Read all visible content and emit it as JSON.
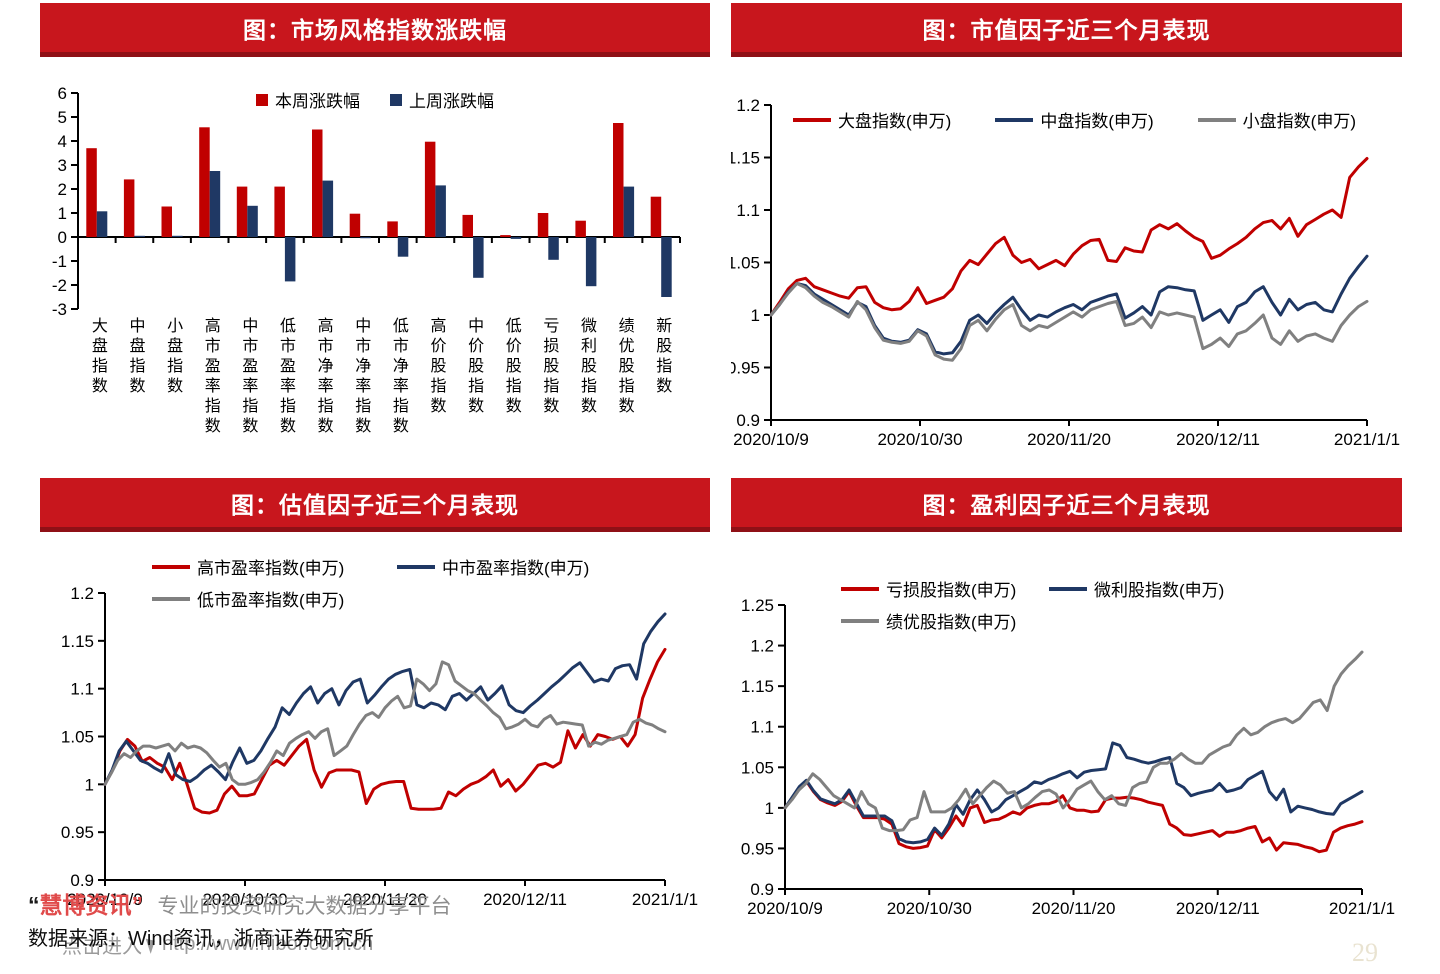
{
  "colors": {
    "banner_bg": "#c8161d",
    "banner_shadow": "#8f1016",
    "series_red": "#c00000",
    "series_navy": "#1f3864",
    "series_gray": "#808080",
    "watermark_red": "#e04a4a",
    "watermark_gray": "#9b9b9b",
    "page_number_color": "#e9e3d1"
  },
  "footer": {
    "watermark_open_quote": "“",
    "watermark_brand": "慧博资讯",
    "watermark_close_quote": "”",
    "watermark_slogan": "专业的投资研究大数据分享平台",
    "watermark_click": "点击进入",
    "watermark_url": "http://www.hibor.com.cn",
    "datasource": "数据来源：Wind资讯，浙商证券研究所",
    "page_number": "29"
  },
  "chart_data": [
    {
      "id": "market-style-change",
      "type": "bar",
      "title": "图：市场风格指数涨跌幅",
      "ylim": [
        -3,
        6
      ],
      "y_ticks": [
        "6",
        "5",
        "4",
        "3",
        "2",
        "1",
        "0",
        "-1",
        "-2",
        "-3"
      ],
      "grid": false,
      "legend_position": "top-center",
      "categories": [
        "大盘指数",
        "中盘指数",
        "小盘指数",
        "高市盈率指数",
        "中市盈率指数",
        "低市盈率指数",
        "高市净率指数",
        "中市净率指数",
        "低市净率指数",
        "高价股指数",
        "中价股指数",
        "低价股指数",
        "亏损股指数",
        "微利股指数",
        "绩优股指数",
        "新股指数"
      ],
      "series": [
        {
          "name": "本周涨跌幅",
          "color": "#c00000",
          "values": [
            3.7,
            2.4,
            1.27,
            4.57,
            2.1,
            2.1,
            4.48,
            0.97,
            0.65,
            3.97,
            0.92,
            0.08,
            1.0,
            0.68,
            4.75,
            1.68
          ]
        },
        {
          "name": "上周涨跌幅",
          "color": "#1f3864",
          "values": [
            1.07,
            0.05,
            0.05,
            2.75,
            1.3,
            -1.85,
            2.35,
            -0.05,
            -0.82,
            2.15,
            -1.7,
            -0.08,
            -0.95,
            -2.05,
            2.1,
            -2.5
          ]
        }
      ],
      "legend_rows": [
        [
          0,
          1
        ]
      ]
    },
    {
      "id": "market-cap-factor",
      "type": "line",
      "title": "图：市值因子近三个月表现",
      "ylim": [
        0.9,
        1.2
      ],
      "y_ticks": [
        "1.2",
        "1.15",
        "1.1",
        "1.05",
        "1",
        "0.95",
        "0.9"
      ],
      "x_labels": [
        "2020/10/9",
        "2020/10/30",
        "2020/11/20",
        "2020/12/11",
        "2021/1/1"
      ],
      "grid": false,
      "legend_position": "top-row",
      "legend_rows": [
        [
          0,
          1,
          2
        ]
      ],
      "series": [
        {
          "name": "大盘指数(申万)",
          "color": "#c00000",
          "values": [
            1.0,
            1.012,
            1.025,
            1.033,
            1.035,
            1.027,
            1.024,
            1.021,
            1.018,
            1.016,
            1.026,
            1.027,
            1.012,
            1.007,
            1.005,
            1.006,
            1.013,
            1.026,
            1.011,
            1.014,
            1.017,
            1.025,
            1.042,
            1.052,
            1.048,
            1.058,
            1.068,
            1.074,
            1.057,
            1.05,
            1.053,
            1.044,
            1.048,
            1.052,
            1.047,
            1.058,
            1.066,
            1.071,
            1.072,
            1.052,
            1.051,
            1.064,
            1.061,
            1.06,
            1.081,
            1.086,
            1.082,
            1.087,
            1.08,
            1.074,
            1.07,
            1.054,
            1.057,
            1.063,
            1.068,
            1.074,
            1.082,
            1.088,
            1.09,
            1.082,
            1.092,
            1.075,
            1.086,
            1.091,
            1.096,
            1.1,
            1.093,
            1.131,
            1.141,
            1.149
          ]
        },
        {
          "name": "中盘指数(申万)",
          "color": "#1f3864",
          "values": [
            1.0,
            1.01,
            1.022,
            1.03,
            1.028,
            1.02,
            1.015,
            1.01,
            1.005,
            1.0,
            1.012,
            1.008,
            0.99,
            0.978,
            0.975,
            0.974,
            0.976,
            0.986,
            0.982,
            0.965,
            0.963,
            0.964,
            0.975,
            0.995,
            1.0,
            0.992,
            1.002,
            1.01,
            1.017,
            1.005,
            0.995,
            1.0,
            0.998,
            1.003,
            1.007,
            1.01,
            1.005,
            1.012,
            1.015,
            1.018,
            1.02,
            0.997,
            1.002,
            1.008,
            1.0,
            1.022,
            1.027,
            1.026,
            1.024,
            1.023,
            0.995,
            1.0,
            1.005,
            0.993,
            1.008,
            1.012,
            1.022,
            1.027,
            1.012,
            1.0,
            1.015,
            1.005,
            1.01,
            1.012,
            1.005,
            1.003,
            1.02,
            1.035,
            1.046,
            1.056
          ]
        },
        {
          "name": "小盘指数(申万)",
          "color": "#808080",
          "values": [
            1.0,
            1.01,
            1.021,
            1.03,
            1.026,
            1.018,
            1.012,
            1.008,
            1.003,
            0.998,
            1.013,
            1.005,
            0.988,
            0.976,
            0.974,
            0.973,
            0.975,
            0.985,
            0.98,
            0.962,
            0.958,
            0.957,
            0.968,
            0.99,
            0.995,
            0.985,
            0.996,
            1.005,
            1.01,
            0.99,
            0.985,
            0.99,
            0.988,
            0.993,
            0.998,
            1.003,
            0.998,
            1.005,
            1.008,
            1.011,
            1.013,
            0.99,
            0.992,
            0.998,
            0.988,
            1.003,
            1.0,
            1.002,
            1.0,
            0.998,
            0.968,
            0.972,
            0.978,
            0.97,
            0.982,
            0.985,
            0.992,
            1.0,
            0.978,
            0.972,
            0.985,
            0.975,
            0.98,
            0.982,
            0.978,
            0.975,
            0.99,
            1.0,
            1.008,
            1.013
          ]
        }
      ]
    },
    {
      "id": "valuation-factor",
      "type": "line",
      "title": "图：估值因子近三个月表现",
      "ylim": [
        0.9,
        1.2
      ],
      "y_ticks": [
        "1.2",
        "1.15",
        "1.1",
        "1.05",
        "1",
        "0.95",
        "0.9"
      ],
      "x_labels": [
        "2020/10/9",
        "2020/10/30",
        "2020/11/20",
        "2020/12/11",
        "2021/1/1"
      ],
      "grid": false,
      "legend_position": "top-two-rows",
      "legend_rows": [
        [
          0,
          1
        ],
        [
          2
        ]
      ],
      "series": [
        {
          "name": "高市盈率指数(申万)",
          "color": "#c00000",
          "values": [
            1.0,
            1.015,
            1.035,
            1.047,
            1.04,
            1.024,
            1.028,
            1.022,
            1.018,
            1.005,
            1.022,
            1.0,
            0.975,
            0.971,
            0.97,
            0.973,
            0.99,
            0.998,
            0.988,
            0.988,
            0.99,
            1.005,
            1.02,
            1.025,
            1.02,
            1.03,
            1.04,
            1.047,
            1.015,
            0.997,
            1.012,
            1.015,
            1.015,
            1.015,
            1.013,
            0.98,
            0.995,
            1.0,
            1.002,
            1.003,
            1.003,
            0.975,
            0.974,
            0.974,
            0.974,
            0.975,
            0.992,
            0.988,
            0.995,
            1.0,
            1.003,
            1.008,
            1.015,
            0.998,
            1.005,
            0.993,
            1.0,
            1.01,
            1.02,
            1.022,
            1.018,
            1.023,
            1.056,
            1.038,
            1.052,
            1.04,
            1.052,
            1.05,
            1.047,
            1.05,
            1.04,
            1.052,
            1.09,
            1.11,
            1.128,
            1.141
          ]
        },
        {
          "name": "中市盈率指数(申万)",
          "color": "#1f3864",
          "values": [
            1.0,
            1.015,
            1.035,
            1.045,
            1.035,
            1.025,
            1.022,
            1.017,
            1.013,
            1.032,
            1.01,
            1.005,
            1.003,
            1.008,
            1.015,
            1.02,
            1.013,
            1.005,
            1.023,
            1.038,
            1.022,
            1.025,
            1.035,
            1.048,
            1.06,
            1.08,
            1.073,
            1.085,
            1.095,
            1.102,
            1.085,
            1.095,
            1.1,
            1.083,
            1.098,
            1.107,
            1.11,
            1.085,
            1.093,
            1.102,
            1.11,
            1.115,
            1.118,
            1.12,
            1.083,
            1.08,
            1.085,
            1.083,
            1.078,
            1.092,
            1.095,
            1.088,
            1.095,
            1.102,
            1.088,
            1.095,
            1.103,
            1.083,
            1.077,
            1.075,
            1.082,
            1.088,
            1.095,
            1.102,
            1.108,
            1.115,
            1.122,
            1.127,
            1.117,
            1.107,
            1.11,
            1.108,
            1.121,
            1.124,
            1.125,
            1.11,
            1.147,
            1.16,
            1.17,
            1.178
          ]
        },
        {
          "name": "低市盈率指数(申万)",
          "color": "#808080",
          "values": [
            1.0,
            1.012,
            1.025,
            1.032,
            1.028,
            1.035,
            1.04,
            1.04,
            1.038,
            1.04,
            1.042,
            1.035,
            1.043,
            1.038,
            1.04,
            1.038,
            1.033,
            1.025,
            1.018,
            1.022,
            1.005,
            1.0,
            1.0,
            1.002,
            1.005,
            1.013,
            1.023,
            1.035,
            1.03,
            1.043,
            1.048,
            1.052,
            1.055,
            1.048,
            1.055,
            1.058,
            1.03,
            1.035,
            1.04,
            1.052,
            1.063,
            1.072,
            1.075,
            1.07,
            1.08,
            1.087,
            1.092,
            1.08,
            1.082,
            1.11,
            1.105,
            1.098,
            1.105,
            1.128,
            1.125,
            1.108,
            1.103,
            1.098,
            1.095,
            1.088,
            1.082,
            1.075,
            1.07,
            1.058,
            1.06,
            1.063,
            1.068,
            1.062,
            1.06,
            1.068,
            1.072,
            1.063,
            1.065,
            1.064,
            1.063,
            1.062,
            1.04,
            1.044,
            1.042,
            1.046,
            1.048,
            1.05,
            1.052,
            1.065,
            1.068,
            1.064,
            1.062,
            1.058,
            1.055
          ]
        }
      ]
    },
    {
      "id": "profit-factor",
      "type": "line",
      "title": "图：盈利因子近三个月表现",
      "ylim": [
        0.9,
        1.25
      ],
      "y_ticks": [
        "1.25",
        "1.2",
        "1.15",
        "1.1",
        "1.05",
        "1",
        "0.95",
        "0.9"
      ],
      "x_labels": [
        "2020/10/9",
        "2020/10/30",
        "2020/11/20",
        "2020/12/11",
        "2021/1/1"
      ],
      "grid": false,
      "legend_position": "top-two-rows",
      "legend_rows": [
        [
          0,
          1
        ],
        [
          2
        ]
      ],
      "series": [
        {
          "name": "亏损股指数(申万)",
          "color": "#c00000",
          "values": [
            1.0,
            1.012,
            1.025,
            1.033,
            1.02,
            1.01,
            1.006,
            1.003,
            1.008,
            1.02,
            1.003,
            0.988,
            0.988,
            0.988,
            0.986,
            0.98,
            0.956,
            0.952,
            0.95,
            0.951,
            0.953,
            0.973,
            0.963,
            0.975,
            0.99,
            0.978,
            1.0,
            1.003,
            0.982,
            0.985,
            0.986,
            0.99,
            0.995,
            0.992,
            1.0,
            1.003,
            1.005,
            1.005,
            1.008,
            1.015,
            1.0,
            0.997,
            0.997,
            0.995,
            0.996,
            1.01,
            1.012,
            1.012,
            1.013,
            1.012,
            1.01,
            1.007,
            1.005,
            1.003,
            0.98,
            0.975,
            0.967,
            0.966,
            0.968,
            0.97,
            0.972,
            0.965,
            0.97,
            0.97,
            0.972,
            0.975,
            0.977,
            0.958,
            0.963,
            0.948,
            0.957,
            0.956,
            0.955,
            0.952,
            0.95,
            0.946,
            0.948,
            0.97,
            0.975,
            0.978,
            0.98,
            0.983
          ]
        },
        {
          "name": "微利股指数(申万)",
          "color": "#1f3864",
          "values": [
            1.0,
            1.013,
            1.026,
            1.034,
            1.021,
            1.011,
            1.008,
            1.005,
            1.01,
            1.022,
            1.006,
            0.99,
            0.99,
            0.99,
            0.99,
            0.984,
            0.962,
            0.958,
            0.957,
            0.958,
            0.961,
            0.975,
            0.966,
            0.98,
            1.004,
            0.992,
            1.01,
            1.022,
            1.01,
            0.995,
            1.0,
            1.01,
            1.015,
            1.02,
            1.025,
            1.032,
            1.03,
            1.035,
            1.038,
            1.042,
            1.045,
            1.037,
            1.044,
            1.046,
            1.047,
            1.048,
            1.08,
            1.077,
            1.062,
            1.06,
            1.057,
            1.055,
            1.057,
            1.06,
            1.062,
            1.03,
            1.025,
            1.015,
            1.018,
            1.02,
            1.022,
            1.03,
            1.02,
            1.022,
            1.025,
            1.035,
            1.04,
            1.045,
            1.02,
            1.01,
            1.023,
            0.995,
            1.002,
            1.0,
            0.998,
            0.995,
            0.993,
            0.992,
            1.005,
            1.01,
            1.015,
            1.02
          ]
        },
        {
          "name": "绩优股指数(申万)",
          "color": "#808080",
          "values": [
            1.0,
            1.01,
            1.022,
            1.03,
            1.042,
            1.035,
            1.025,
            1.015,
            1.01,
            1.005,
            1.0,
            1.02,
            1.005,
            1.0,
            0.975,
            0.972,
            0.972,
            0.973,
            0.985,
            0.988,
            1.02,
            0.995,
            0.995,
            0.995,
            1.0,
            1.01,
            1.023,
            1.005,
            1.015,
            1.025,
            1.033,
            1.028,
            1.018,
            1.02,
            1.0,
            1.005,
            1.013,
            1.02,
            1.022,
            1.017,
            1.0,
            1.01,
            1.023,
            1.028,
            1.033,
            1.02,
            1.01,
            1.015,
            1.005,
            1.003,
            1.025,
            1.03,
            1.032,
            1.05,
            1.055,
            1.055,
            1.06,
            1.067,
            1.06,
            1.055,
            1.055,
            1.065,
            1.07,
            1.075,
            1.078,
            1.09,
            1.098,
            1.09,
            1.093,
            1.1,
            1.105,
            1.108,
            1.11,
            1.105,
            1.11,
            1.12,
            1.13,
            1.133,
            1.12,
            1.15,
            1.165,
            1.175,
            1.183,
            1.192
          ]
        }
      ]
    }
  ]
}
